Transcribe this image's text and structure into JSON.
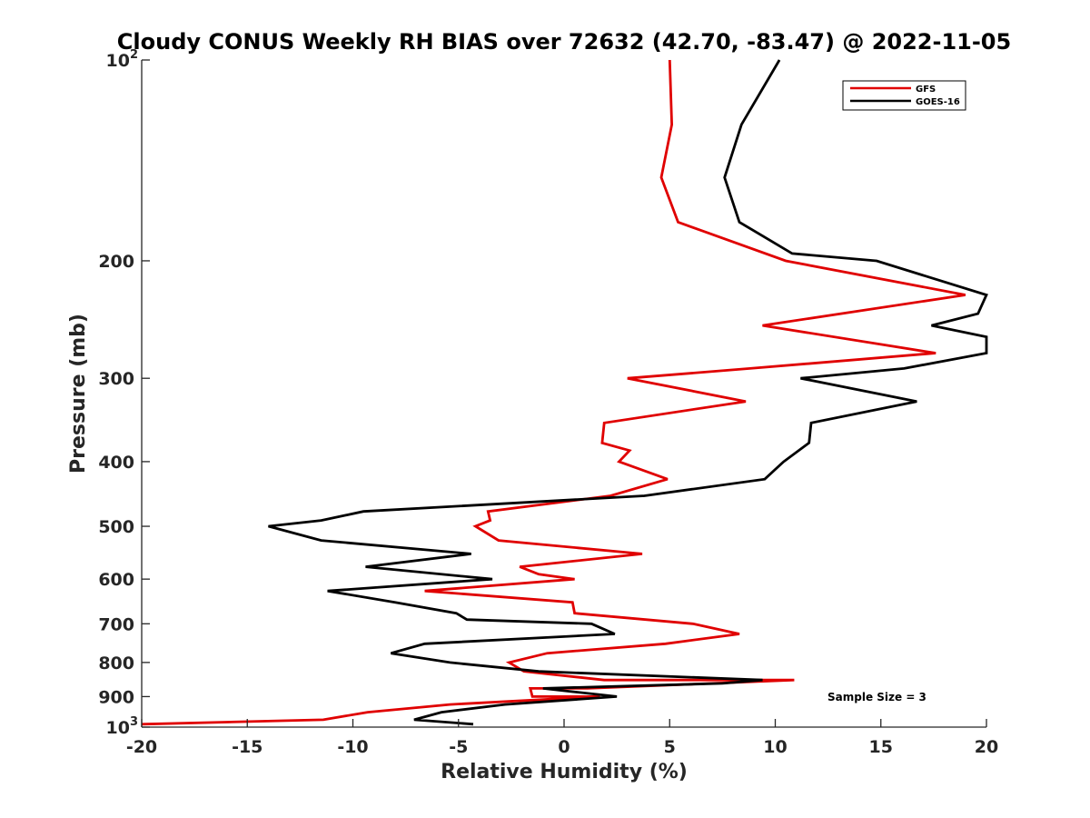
{
  "chart_data": {
    "type": "line",
    "title": "Cloudy CONUS Weekly RH BIAS over 72632 (42.70, -83.47) @ 2022-11-05",
    "xlabel": "Relative Humidity (%)",
    "ylabel": "Pressure (mb)",
    "xlim": [
      -20,
      20
    ],
    "ylim": [
      100,
      1000
    ],
    "y_scale": "log",
    "y_reversed": true,
    "x_ticks": [
      "-20",
      "-15",
      "-10",
      "-5",
      "0",
      "5",
      "10",
      "15",
      "20"
    ],
    "y_ticks": [
      {
        "value": 100,
        "base": "10",
        "exp": "2"
      },
      {
        "value": 200,
        "label": "200"
      },
      {
        "value": 300,
        "label": "300"
      },
      {
        "value": 400,
        "label": "400"
      },
      {
        "value": 500,
        "label": "500"
      },
      {
        "value": 600,
        "label": "600"
      },
      {
        "value": 700,
        "label": "700"
      },
      {
        "value": 800,
        "label": "800"
      },
      {
        "value": 900,
        "label": "900"
      },
      {
        "value": 1000,
        "base": "10",
        "exp": "3"
      }
    ],
    "grid": false,
    "legend_position": "top-right",
    "annotation": "Sample Size = 3",
    "series": [
      {
        "name": "GFS",
        "color": "#e00000",
        "points": [
          [
            5.0,
            100
          ],
          [
            5.1,
            125
          ],
          [
            4.6,
            150
          ],
          [
            5.4,
            175
          ],
          [
            10.5,
            200
          ],
          [
            19.0,
            225
          ],
          [
            9.4,
            250
          ],
          [
            17.6,
            275
          ],
          [
            8.8,
            290
          ],
          [
            3.0,
            300
          ],
          [
            8.6,
            325
          ],
          [
            1.9,
            350
          ],
          [
            1.8,
            375
          ],
          [
            3.1,
            385
          ],
          [
            2.6,
            400
          ],
          [
            4.9,
            425
          ],
          [
            2.2,
            450
          ],
          [
            -3.6,
            475
          ],
          [
            -3.5,
            490
          ],
          [
            -4.2,
            500
          ],
          [
            -3.1,
            525
          ],
          [
            3.7,
            550
          ],
          [
            -2.1,
            575
          ],
          [
            -1.2,
            590
          ],
          [
            0.5,
            600
          ],
          [
            -6.6,
            625
          ],
          [
            0.4,
            650
          ],
          [
            0.5,
            675
          ],
          [
            6.1,
            700
          ],
          [
            8.3,
            725
          ],
          [
            4.8,
            750
          ],
          [
            -0.8,
            775
          ],
          [
            -2.6,
            800
          ],
          [
            -1.9,
            825
          ],
          [
            1.9,
            850
          ],
          [
            10.9,
            850
          ],
          [
            1.1,
            875
          ],
          [
            -1.6,
            875
          ],
          [
            -1.5,
            900
          ],
          [
            1.7,
            900
          ],
          [
            -5.4,
            925
          ],
          [
            -9.3,
            950
          ],
          [
            -11.4,
            975
          ],
          [
            -20.0,
            990
          ]
        ]
      },
      {
        "name": "GOES-16",
        "color": "#000000",
        "points": [
          [
            10.2,
            100
          ],
          [
            8.4,
            125
          ],
          [
            7.6,
            150
          ],
          [
            8.3,
            175
          ],
          [
            10.8,
            195
          ],
          [
            14.8,
            200
          ],
          [
            20.0,
            225
          ],
          [
            19.6,
            240
          ],
          [
            17.4,
            250
          ],
          [
            20.0,
            260
          ],
          [
            20.0,
            275
          ],
          [
            16.1,
            290
          ],
          [
            11.2,
            300
          ],
          [
            16.7,
            325
          ],
          [
            11.7,
            350
          ],
          [
            11.6,
            375
          ],
          [
            10.4,
            400
          ],
          [
            9.5,
            425
          ],
          [
            3.8,
            450
          ],
          [
            -9.5,
            475
          ],
          [
            -11.5,
            490
          ],
          [
            -14.0,
            500
          ],
          [
            -11.5,
            525
          ],
          [
            -4.4,
            550
          ],
          [
            -9.4,
            575
          ],
          [
            -3.4,
            600
          ],
          [
            -11.2,
            625
          ],
          [
            -8.0,
            650
          ],
          [
            -5.1,
            675
          ],
          [
            -4.6,
            690
          ],
          [
            1.3,
            700
          ],
          [
            2.4,
            725
          ],
          [
            -6.6,
            750
          ],
          [
            -8.2,
            775
          ],
          [
            -5.4,
            800
          ],
          [
            -1.2,
            825
          ],
          [
            9.4,
            850
          ],
          [
            7.5,
            860
          ],
          [
            -1.0,
            875
          ],
          [
            2.5,
            900
          ],
          [
            -2.8,
            925
          ],
          [
            -5.8,
            950
          ],
          [
            -7.1,
            975
          ],
          [
            -4.3,
            990
          ]
        ]
      }
    ]
  }
}
